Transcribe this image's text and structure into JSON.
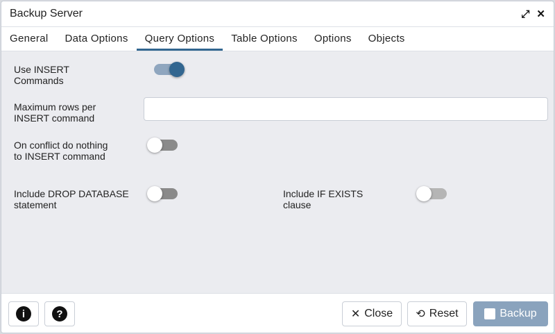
{
  "dialog": {
    "title": "Backup Server"
  },
  "tabs": [
    {
      "label": "General"
    },
    {
      "label": "Data Options"
    },
    {
      "label": "Query Options",
      "active": true
    },
    {
      "label": "Table Options"
    },
    {
      "label": "Options"
    },
    {
      "label": "Objects"
    }
  ],
  "fields": {
    "use_insert": {
      "label": "Use INSERT Commands",
      "value": true
    },
    "max_rows": {
      "label": "Maximum rows per INSERT command",
      "value": ""
    },
    "on_conflict": {
      "label": "On conflict do nothing to INSERT command",
      "value": false
    },
    "include_drop": {
      "label": "Include DROP DATABASE statement",
      "value": false
    },
    "include_if_exists": {
      "label": "Include IF EXISTS clause",
      "value": false,
      "disabled": true
    }
  },
  "footer": {
    "info_icon": "i",
    "help_icon": "?",
    "close_icon": "✕",
    "close": "Close",
    "reset_icon": "⟲",
    "reset": "Reset",
    "backup_icon": "💾",
    "backup": "Backup"
  },
  "colors": {
    "accent": "#326690",
    "primary_button": "#8aa3bd"
  }
}
